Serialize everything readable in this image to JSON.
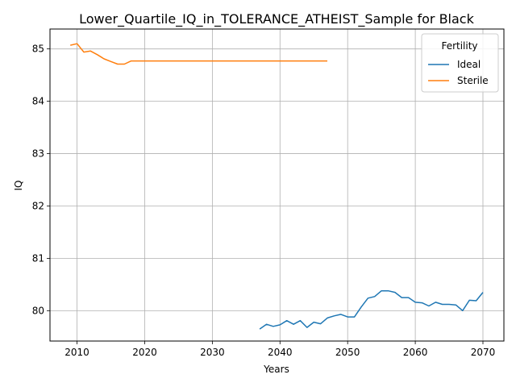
{
  "chart_data": {
    "type": "line",
    "title": "Lower_Quartile_IQ_in_TOLERANCE_ATHEIST_Sample for Black",
    "xlabel": "Years",
    "ylabel": "IQ",
    "xlim": [
      2006.0,
      2073.1
    ],
    "ylim": [
      79.42,
      85.38
    ],
    "xticks": [
      2010,
      2020,
      2030,
      2040,
      2050,
      2060,
      2070
    ],
    "yticks": [
      80,
      81,
      82,
      83,
      84,
      85
    ],
    "grid": true,
    "legend": {
      "title": "Fertility",
      "location": "top-right"
    },
    "series": [
      {
        "name": "Ideal",
        "color": "#1f77b4",
        "x": [
          2037,
          2038,
          2039,
          2040,
          2041,
          2042,
          2043,
          2044,
          2045,
          2046,
          2047,
          2048,
          2049,
          2050,
          2051,
          2052,
          2053,
          2054,
          2055,
          2056,
          2057,
          2058,
          2059,
          2060,
          2061,
          2062,
          2063,
          2064,
          2065,
          2066,
          2067,
          2068,
          2069,
          2070
        ],
        "y": [
          79.65,
          79.74,
          79.7,
          79.73,
          79.81,
          79.74,
          79.81,
          79.68,
          79.78,
          79.75,
          79.86,
          79.9,
          79.93,
          79.88,
          79.88,
          80.07,
          80.24,
          80.27,
          80.38,
          80.38,
          80.35,
          80.25,
          80.25,
          80.16,
          80.15,
          80.09,
          80.16,
          80.12,
          80.12,
          80.11,
          80.0,
          80.2,
          80.19,
          80.35
        ]
      },
      {
        "name": "Sterile",
        "color": "#ff7f0e",
        "x": [
          2009,
          2010,
          2011,
          2012,
          2013,
          2014,
          2015,
          2016,
          2017,
          2018,
          2019,
          2020,
          2021,
          2022,
          2023,
          2024,
          2025,
          2026,
          2027,
          2028,
          2029,
          2030,
          2031,
          2032,
          2033,
          2034,
          2035,
          2036,
          2037,
          2038,
          2039,
          2040,
          2041,
          2042,
          2043,
          2044,
          2045,
          2046,
          2047
        ],
        "y": [
          85.07,
          85.1,
          84.94,
          84.96,
          84.89,
          84.81,
          84.76,
          84.71,
          84.71,
          84.77,
          84.77,
          84.77,
          84.77,
          84.77,
          84.77,
          84.77,
          84.77,
          84.77,
          84.77,
          84.77,
          84.77,
          84.77,
          84.77,
          84.77,
          84.77,
          84.77,
          84.77,
          84.77,
          84.77,
          84.77,
          84.77,
          84.77,
          84.77,
          84.77,
          84.77,
          84.77,
          84.77,
          84.77,
          84.77
        ]
      }
    ]
  }
}
